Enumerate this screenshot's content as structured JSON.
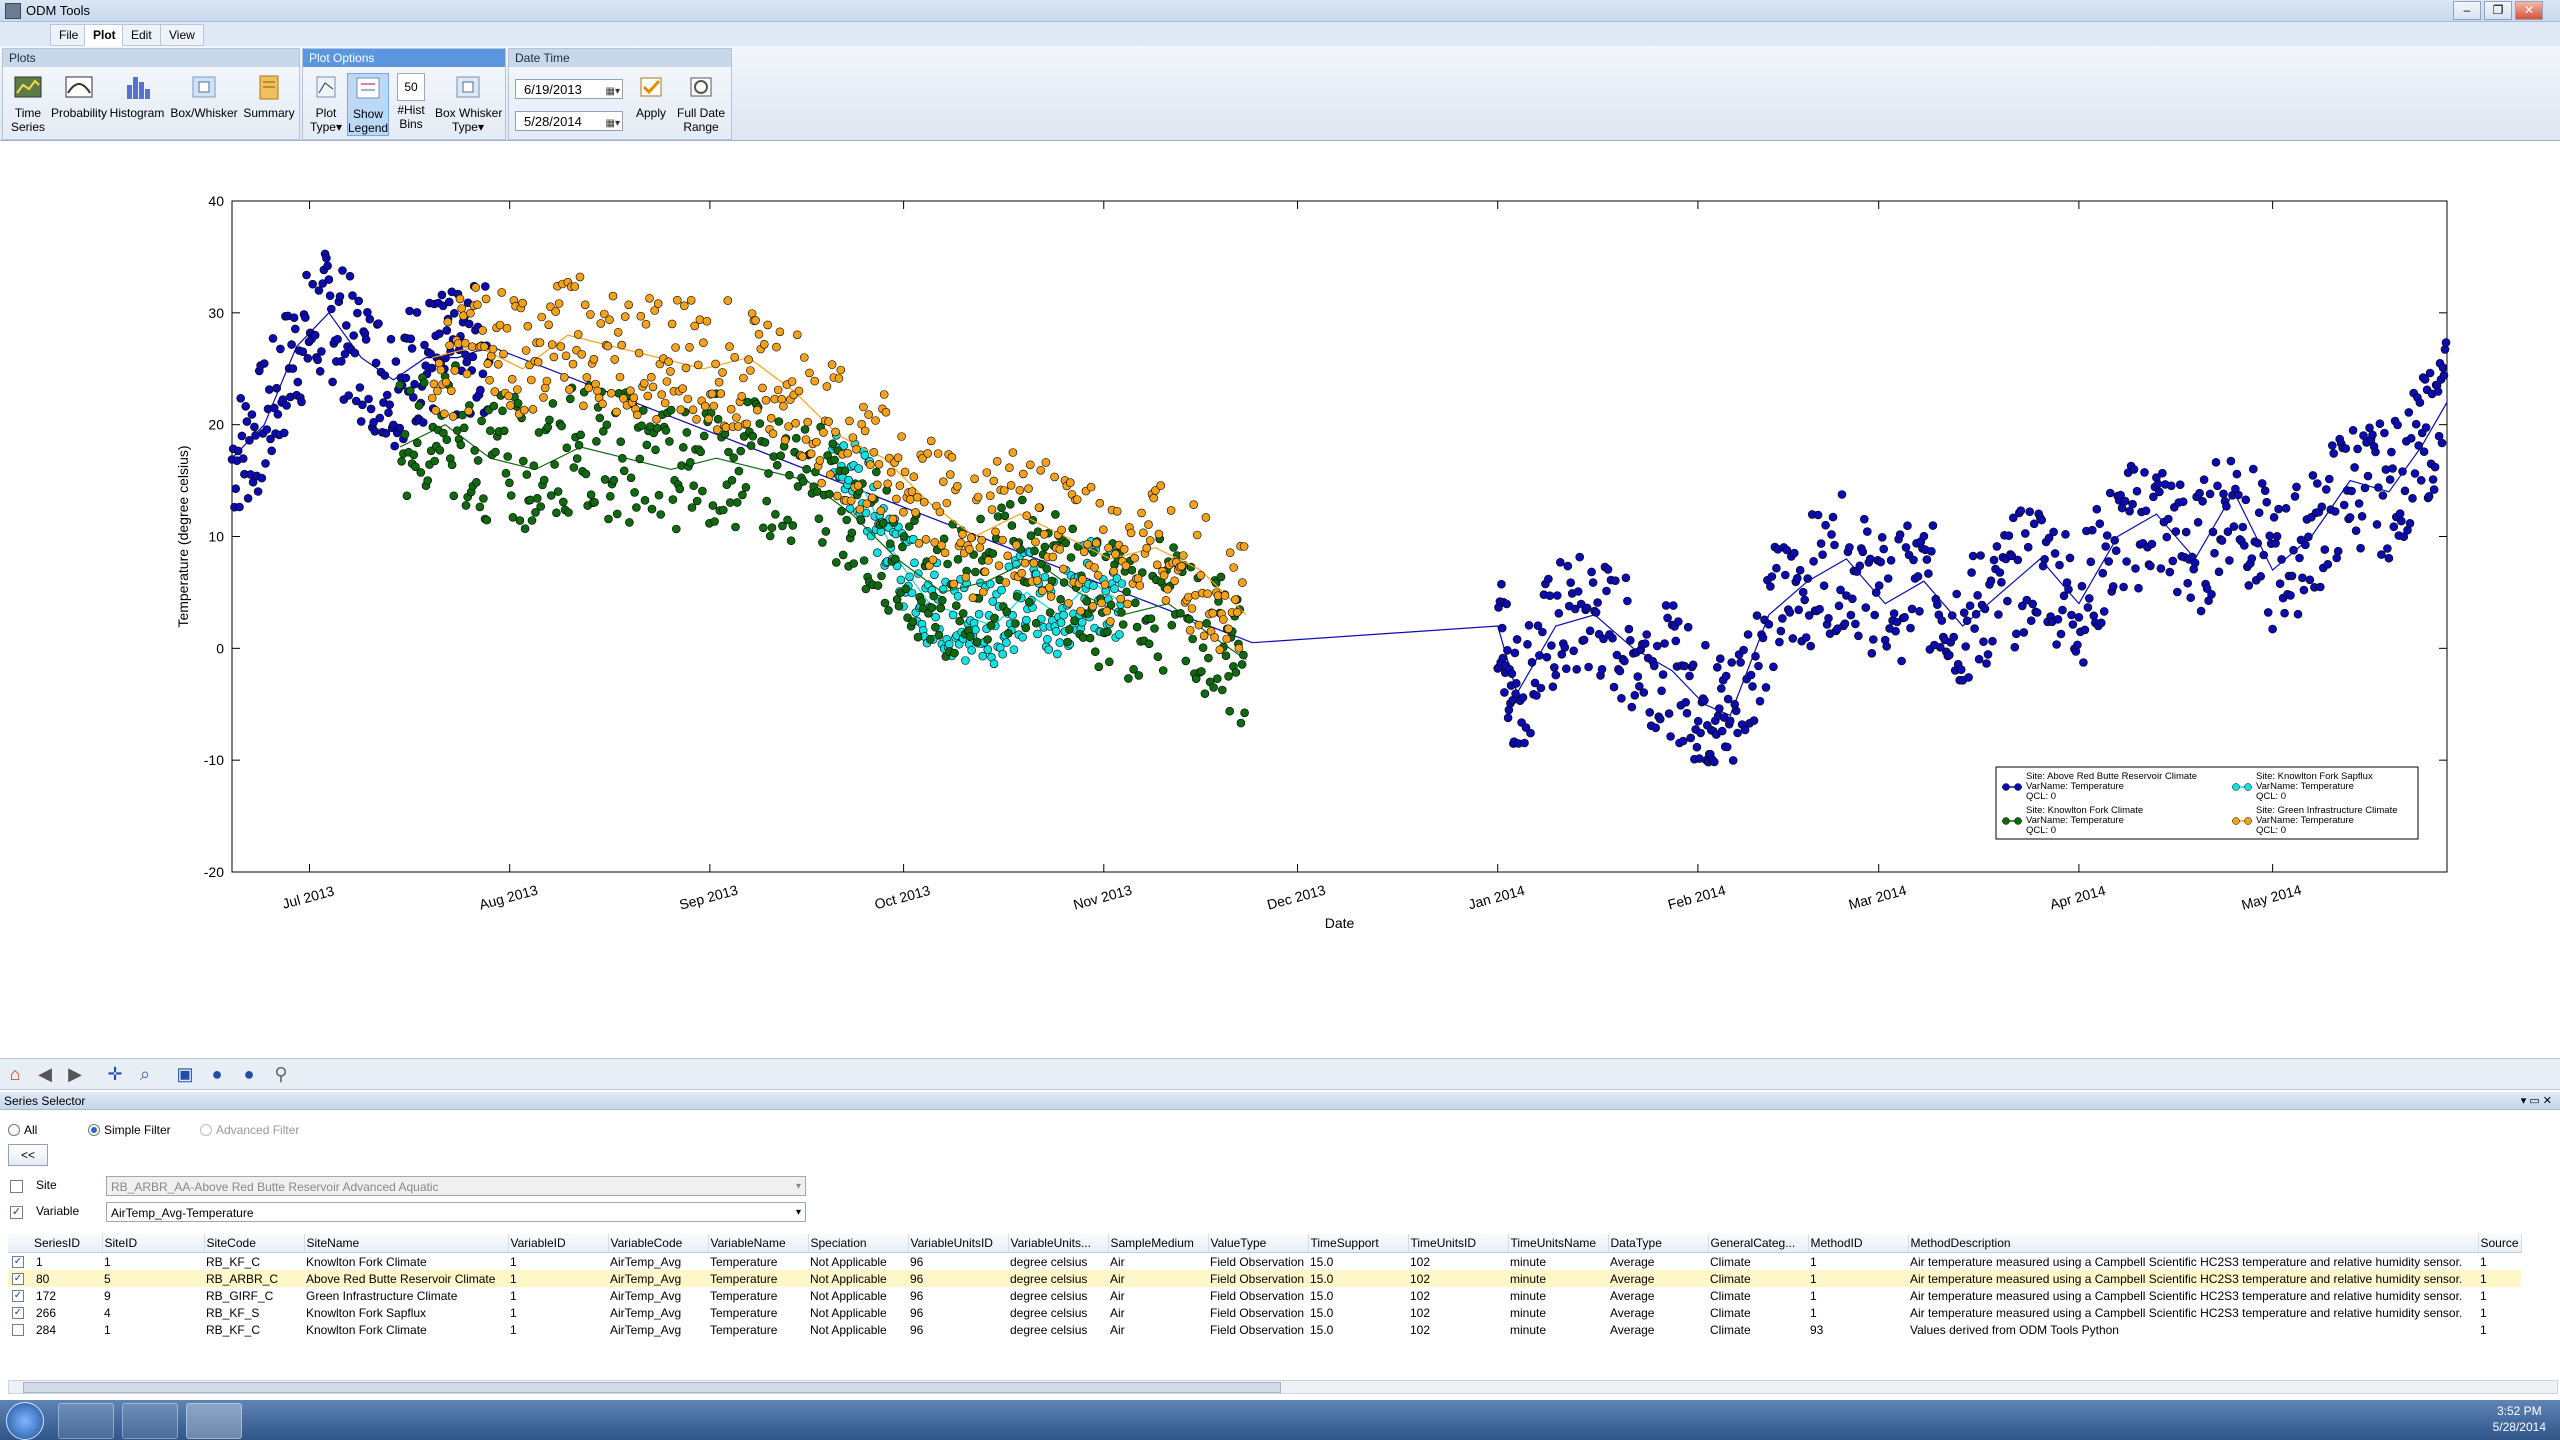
{
  "window": {
    "title": "ODM Tools",
    "min_label": "–",
    "max_label": "❐",
    "close_label": "✕"
  },
  "menu_tabs": [
    "File",
    "Plot",
    "Edit",
    "View"
  ],
  "ribbon": {
    "plots_group": "Plots",
    "plots_buttons": [
      {
        "label": "Time\nSeries",
        "icon": "time-series-icon"
      },
      {
        "label": "Probability",
        "icon": "probability-icon"
      },
      {
        "label": "Histogram",
        "icon": "histogram-icon"
      },
      {
        "label": "Box/Whisker",
        "icon": "box-whisker-icon"
      },
      {
        "label": "Summary",
        "icon": "summary-icon"
      }
    ],
    "options_group": "Plot Options",
    "options_buttons": [
      {
        "label": "Plot\nType▾",
        "icon": "plot-type-icon"
      },
      {
        "label": "Show\nLegend",
        "icon": "show-legend-icon"
      },
      {
        "label": "#Hist\nBins",
        "icon": "hist-bins-icon"
      },
      {
        "label": "Box Whisker\nType▾",
        "icon": "box-whisker-type-icon"
      }
    ],
    "hist_bins_value": "50",
    "datetime_group": "Date Time",
    "start_date": "6/19/2013",
    "end_date": "5/28/2014",
    "apply_label": "Apply",
    "full_range_label": "Full Date\nRange"
  },
  "chart_data": {
    "type": "scatter",
    "xlabel": "Date",
    "ylabel": "Temperature (degree celsius)",
    "ylim": [
      -20,
      40
    ],
    "yticks": [
      -20,
      -10,
      0,
      10,
      20,
      30,
      40
    ],
    "xticks": [
      "Jul 2013",
      "Aug 2013",
      "Sep 2013",
      "Oct 2013",
      "Nov 2013",
      "Dec 2013",
      "Jan 2014",
      "Feb 2014",
      "Mar 2014",
      "Apr 2014",
      "May 2014"
    ],
    "xlim": [
      "2013-06-19",
      "2014-05-28"
    ],
    "legend_position": "bottom-right",
    "series": [
      {
        "site": "Site: Above Red Butte Reservoir Climate",
        "var": "VarName: Temperature",
        "qcl": "QCL: 0",
        "color": "#0b0bb0",
        "points": [
          [
            "2013-06-19",
            17
          ],
          [
            "2013-06-24",
            20
          ],
          [
            "2013-06-29",
            27
          ],
          [
            "2013-07-04",
            30
          ],
          [
            "2013-07-09",
            26
          ],
          [
            "2013-07-14",
            24
          ],
          [
            "2013-07-19",
            26
          ],
          [
            "2013-07-24",
            26
          ],
          [
            "2013-07-29",
            27
          ],
          [
            "2013-11-24",
            0.5
          ],
          [
            "2014-01-01",
            2
          ],
          [
            "2014-01-04",
            -4
          ],
          [
            "2014-01-10",
            2
          ],
          [
            "2014-01-16",
            3
          ],
          [
            "2014-01-22",
            0
          ],
          [
            "2014-01-28",
            -2
          ],
          [
            "2014-02-02",
            -5
          ],
          [
            "2014-02-06",
            -6
          ],
          [
            "2014-02-12",
            3
          ],
          [
            "2014-02-18",
            6
          ],
          [
            "2014-02-24",
            8
          ],
          [
            "2014-03-02",
            4
          ],
          [
            "2014-03-08",
            6
          ],
          [
            "2014-03-14",
            2
          ],
          [
            "2014-03-20",
            5
          ],
          [
            "2014-03-26",
            8
          ],
          [
            "2014-04-01",
            4
          ],
          [
            "2014-04-07",
            10
          ],
          [
            "2014-04-13",
            12
          ],
          [
            "2014-04-19",
            8
          ],
          [
            "2014-04-25",
            14
          ],
          [
            "2014-05-01",
            7
          ],
          [
            "2014-05-07",
            10
          ],
          [
            "2014-05-13",
            15
          ],
          [
            "2014-05-19",
            14
          ],
          [
            "2014-05-24",
            18
          ],
          [
            "2014-05-28",
            22
          ]
        ]
      },
      {
        "site": "Site: Knowlton Fork Sapflux",
        "var": "VarName: Temperature",
        "qcl": "QCL: 0",
        "color": "#13e0e0",
        "points": [
          [
            "2013-09-20",
            16
          ],
          [
            "2013-09-25",
            14
          ],
          [
            "2013-09-30",
            8
          ],
          [
            "2013-10-05",
            4
          ],
          [
            "2013-10-10",
            3
          ],
          [
            "2013-10-15",
            2
          ],
          [
            "2013-10-20",
            5
          ],
          [
            "2013-10-25",
            3
          ],
          [
            "2013-10-30",
            6
          ],
          [
            "2013-11-04",
            4
          ]
        ]
      },
      {
        "site": "Site: Knowlton Fork Climate",
        "var": "VarName: Temperature",
        "qcl": "QCL: 0",
        "color": "#0f6a0f",
        "points": [
          [
            "2013-07-15",
            18
          ],
          [
            "2013-07-22",
            20
          ],
          [
            "2013-07-29",
            17
          ],
          [
            "2013-08-05",
            16
          ],
          [
            "2013-08-12",
            18
          ],
          [
            "2013-08-19",
            17
          ],
          [
            "2013-08-26",
            16
          ],
          [
            "2013-09-02",
            17
          ],
          [
            "2013-09-09",
            16
          ],
          [
            "2013-09-16",
            15
          ],
          [
            "2013-09-23",
            12
          ],
          [
            "2013-09-30",
            8
          ],
          [
            "2013-10-07",
            5
          ],
          [
            "2013-10-14",
            6
          ],
          [
            "2013-10-21",
            8
          ],
          [
            "2013-10-28",
            5
          ],
          [
            "2013-11-04",
            3
          ],
          [
            "2013-11-11",
            4
          ],
          [
            "2013-11-18",
            1
          ],
          [
            "2013-11-23",
            -1
          ]
        ]
      },
      {
        "site": "Site: Green Infrastructure Climate",
        "var": "VarName: Temperature",
        "qcl": "QCL: 0",
        "color": "#f5a21a",
        "points": [
          [
            "2013-07-20",
            26
          ],
          [
            "2013-07-27",
            27
          ],
          [
            "2013-08-03",
            25
          ],
          [
            "2013-08-10",
            28
          ],
          [
            "2013-08-17",
            27
          ],
          [
            "2013-08-24",
            26
          ],
          [
            "2013-08-31",
            25
          ],
          [
            "2013-09-07",
            26
          ],
          [
            "2013-09-14",
            23
          ],
          [
            "2013-09-21",
            19
          ],
          [
            "2013-09-28",
            17
          ],
          [
            "2013-10-05",
            13
          ],
          [
            "2013-10-12",
            10
          ],
          [
            "2013-10-19",
            12
          ],
          [
            "2013-10-26",
            10
          ],
          [
            "2013-11-02",
            8
          ],
          [
            "2013-11-09",
            9
          ],
          [
            "2013-11-16",
            7
          ],
          [
            "2013-11-23",
            3
          ]
        ]
      }
    ]
  },
  "navbar_icons": [
    "home-icon",
    "back-icon",
    "forward-icon",
    "pan-icon",
    "zoom-icon",
    "save-icon",
    "zoom-in-icon",
    "zoom-out-icon",
    "tool-icon"
  ],
  "selector": {
    "title": "Series Selector",
    "filter_all": "All",
    "filter_simple": "Simple Filter",
    "filter_advanced": "Advanced Filter",
    "collapse_label": "<<",
    "site_label": "Site",
    "site_value": "RB_ARBR_AA-Above Red Butte Reservoir Advanced Aquatic",
    "variable_label": "Variable",
    "variable_value": "AirTemp_Avg-Temperature",
    "columns": [
      "SeriesID",
      "SiteID",
      "SiteCode",
      "SiteName",
      "VariableID",
      "VariableCode",
      "VariableName",
      "Speciation",
      "VariableUnitsID",
      "VariableUnits...",
      "SampleMedium",
      "ValueType",
      "TimeSupport",
      "TimeUnitsID",
      "TimeUnitsName",
      "DataType",
      "GeneralCateg...",
      "MethodID",
      "MethodDescription",
      "Source"
    ],
    "rows": [
      {
        "checked": true,
        "cells": [
          "1",
          "1",
          "RB_KF_C",
          "Knowlton Fork Climate",
          "1",
          "AirTemp_Avg",
          "Temperature",
          "Not Applicable",
          "96",
          "degree celsius",
          "Air",
          "Field Observation",
          "15.0",
          "102",
          "minute",
          "Average",
          "Climate",
          "1",
          "Air temperature measured using a Campbell Scientific HC2S3 temperature and relative humidity sensor.",
          "1"
        ]
      },
      {
        "checked": true,
        "cells": [
          "80",
          "5",
          "RB_ARBR_C",
          "Above Red Butte Reservoir Climate",
          "1",
          "AirTemp_Avg",
          "Temperature",
          "Not Applicable",
          "96",
          "degree celsius",
          "Air",
          "Field Observation",
          "15.0",
          "102",
          "minute",
          "Average",
          "Climate",
          "1",
          "Air temperature measured using a Campbell Scientific HC2S3 temperature and relative humidity sensor.",
          "1"
        ]
      },
      {
        "checked": true,
        "cells": [
          "172",
          "9",
          "RB_GIRF_C",
          "Green Infrastructure Climate",
          "1",
          "AirTemp_Avg",
          "Temperature",
          "Not Applicable",
          "96",
          "degree celsius",
          "Air",
          "Field Observation",
          "15.0",
          "102",
          "minute",
          "Average",
          "Climate",
          "1",
          "Air temperature measured using a Campbell Scientific HC2S3 temperature and relative humidity sensor.",
          "1"
        ]
      },
      {
        "checked": true,
        "cells": [
          "266",
          "4",
          "RB_KF_S",
          "Knowlton Fork Sapflux",
          "1",
          "AirTemp_Avg",
          "Temperature",
          "Not Applicable",
          "96",
          "degree celsius",
          "Air",
          "Field Observation",
          "15.0",
          "102",
          "minute",
          "Average",
          "Climate",
          "1",
          "Air temperature measured using a Campbell Scientific HC2S3 temperature and relative humidity sensor.",
          "1"
        ]
      },
      {
        "checked": false,
        "cells": [
          "284",
          "1",
          "RB_KF_C",
          "Knowlton Fork Climate",
          "1",
          "AirTemp_Avg",
          "Temperature",
          "Not Applicable",
          "96",
          "degree celsius",
          "Air",
          "Field Observation",
          "15.0",
          "102",
          "minute",
          "Average",
          "Climate",
          "93",
          "Values derived from ODM Tools Python",
          "1"
        ]
      }
    ]
  },
  "taskbar": {
    "time": "3:52 PM",
    "date": "5/28/2014"
  }
}
